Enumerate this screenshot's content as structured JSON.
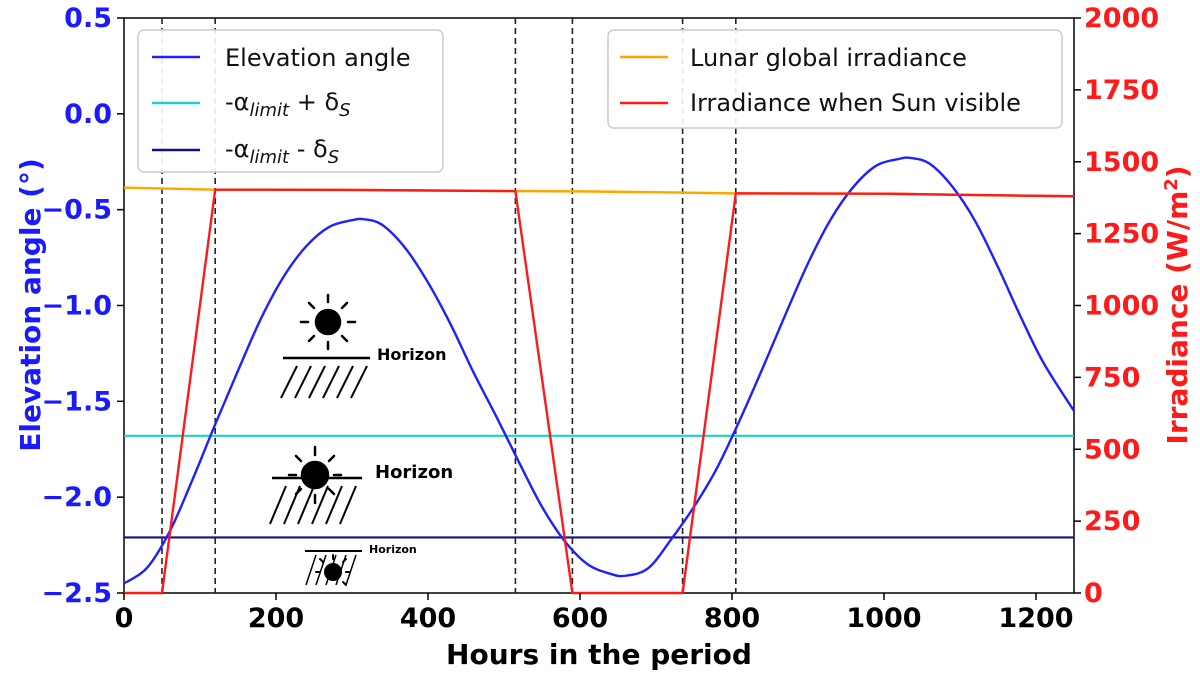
{
  "chart_data": {
    "type": "line",
    "xlabel": "Hours in the period",
    "ylabel_left": "Elevation angle (°)",
    "ylabel_right_base": "Irradiance (W/m",
    "ylabel_right_sup": "2",
    "ylabel_right_end": ")",
    "xlim": [
      0,
      1250
    ],
    "ylim_left": [
      -2.5,
      0.5
    ],
    "ylim_right": [
      0,
      2000
    ],
    "x_ticks": [
      "0",
      "200",
      "400",
      "600",
      "800",
      "1000",
      "1200"
    ],
    "left_ticks": [
      "0.5",
      "0.0",
      "−0.5",
      "−1.0",
      "−1.5",
      "−2.0",
      "−2.5"
    ],
    "right_ticks": [
      "2000",
      "1750",
      "1500",
      "1250",
      "1000",
      "750",
      "500",
      "250",
      "0"
    ],
    "grid": false,
    "legends": {
      "left": {
        "placement": "top-left",
        "entries": [
          {
            "label": "Elevation angle",
            "color": "#1f1fff"
          },
          {
            "label_prefix": "-α",
            "label_sub": "limit",
            "label_mid": " + δ",
            "label_sub2": "S",
            "color": "#1fcfcf"
          },
          {
            "label_prefix": "-α",
            "label_sub": "limit",
            "label_mid": " - δ",
            "label_sub2": "S",
            "color": "#10108a"
          }
        ]
      },
      "right": {
        "placement": "top-right",
        "entries": [
          {
            "label": "Lunar global irradiance",
            "color": "#ffa500"
          },
          {
            "label": "Irradiance when Sun visible",
            "color": "#ff1a1a"
          }
        ]
      }
    },
    "series": [
      {
        "axis": "left",
        "color": "#1f1fff",
        "x": [
          0,
          30,
          60,
          90,
          120,
          150,
          180,
          210,
          240,
          270,
          300,
          316,
          340,
          370,
          400,
          430,
          460,
          490,
          520,
          550,
          580,
          610,
          640,
          660,
          690,
          720,
          750,
          780,
          810,
          840,
          870,
          900,
          930,
          960,
          990,
          1020,
          1035,
          1060,
          1090,
          1120,
          1150,
          1180,
          1210,
          1250
        ],
        "y": [
          -2.45,
          -2.37,
          -2.18,
          -1.91,
          -1.62,
          -1.34,
          -1.07,
          -0.85,
          -0.69,
          -0.59,
          -0.555,
          -0.55,
          -0.58,
          -0.7,
          -0.88,
          -1.1,
          -1.35,
          -1.58,
          -1.82,
          -2.05,
          -2.23,
          -2.35,
          -2.4,
          -2.41,
          -2.37,
          -2.22,
          -2.05,
          -1.85,
          -1.6,
          -1.33,
          -1.05,
          -0.78,
          -0.55,
          -0.38,
          -0.27,
          -0.235,
          -0.23,
          -0.26,
          -0.38,
          -0.56,
          -0.8,
          -1.06,
          -1.3,
          -1.55
        ]
      },
      {
        "axis": "right",
        "color": "#ffa500",
        "x": [
          0,
          120,
          300,
          500,
          600,
          700,
          800,
          1000,
          1100,
          1250
        ],
        "y": [
          1410,
          1403,
          1402,
          1398,
          1397,
          1394,
          1390,
          1389,
          1385,
          1380
        ]
      },
      {
        "axis": "right",
        "color": "#ff1a1a",
        "x": [
          0,
          50,
          120,
          300,
          515,
          590,
          735,
          805,
          1000,
          1100,
          1250
        ],
        "y": [
          0,
          0,
          1403,
          1402,
          1398,
          0,
          0,
          1390,
          1389,
          1385,
          1380
        ]
      }
    ],
    "hlines": [
      {
        "axis": "left",
        "y": -1.68,
        "color": "#1fcfcf"
      },
      {
        "axis": "left",
        "y": -2.21,
        "color": "#10108a"
      }
    ],
    "vlines": [
      {
        "x": 50
      },
      {
        "x": 120
      },
      {
        "x": 515
      },
      {
        "x": 590
      },
      {
        "x": 735
      },
      {
        "x": 805
      }
    ],
    "annotations": {
      "horizon_label": "Horizon"
    }
  }
}
